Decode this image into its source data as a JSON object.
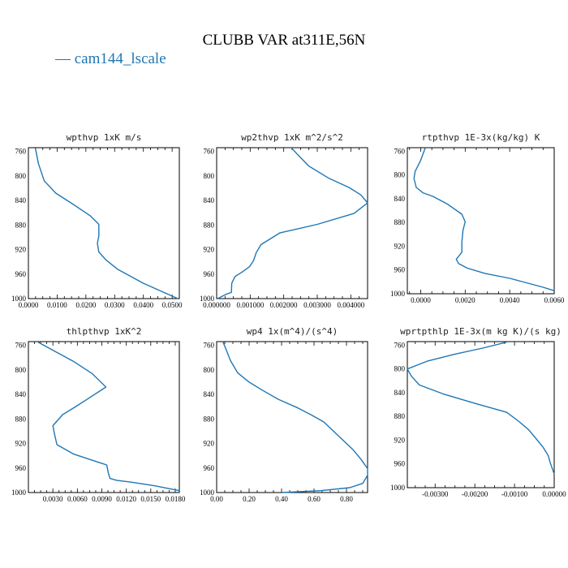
{
  "figure_title": "CLUBB VAR at311E,56N",
  "legend": {
    "label": "cam144_lscale",
    "color": "#1f77b4"
  },
  "series_color": "#1f77b4",
  "chart_data": [
    {
      "type": "line",
      "title": "wpthvp  1xK m/s",
      "xlim": [
        0.0,
        0.0525
      ],
      "ylim": [
        1000,
        754
      ],
      "yticks": [
        760,
        800,
        840,
        880,
        920,
        960,
        1000
      ],
      "xticks": [
        0.0,
        0.01,
        0.02,
        0.03,
        0.04,
        0.05
      ],
      "xtick_labels": [
        "0.0000",
        "0.0100",
        "0.0200",
        "0.0300",
        "0.0400",
        "0.0500"
      ],
      "series": [
        {
          "x": [
            0.0025,
            0.0035,
            0.0055,
            0.0095,
            0.0155,
            0.0215,
            0.0245,
            0.0245,
            0.024,
            0.0245,
            0.027,
            0.031,
            0.04,
            0.052
          ],
          "y": [
            757,
            780,
            808,
            828,
            846,
            865,
            879,
            898,
            910,
            924,
            937,
            952,
            975,
            1000
          ]
        }
      ]
    },
    {
      "type": "line",
      "title": "wp2thvp  1xK m^2/s^2",
      "xlim": [
        0.0,
        0.0045
      ],
      "ylim": [
        1000,
        754
      ],
      "yticks": [
        760,
        800,
        840,
        880,
        920,
        960,
        1000
      ],
      "xticks": [
        0.0,
        0.001,
        0.002,
        0.003,
        0.004
      ],
      "xtick_labels": [
        "0.000000",
        "0.001000",
        "0.002000",
        "0.003000",
        "0.004000"
      ],
      "series": [
        {
          "x": [
            0.00224,
            0.0025,
            0.00275,
            0.00335,
            0.00395,
            0.0043,
            0.0045,
            0.0041,
            0.003,
            0.00188,
            0.00132,
            0.00118,
            0.0011,
            0.00098,
            0.00078,
            0.00055,
            0.00045,
            0.00044,
            0.00028,
            3e-05
          ],
          "y": [
            755,
            770,
            784,
            804,
            819,
            831,
            844,
            861,
            879,
            893,
            912,
            925,
            938,
            948,
            956,
            964,
            975,
            990,
            993,
            1000
          ]
        }
      ]
    },
    {
      "type": "line",
      "title": "rtpthvp  1E-3x(kg/kg) K",
      "xlim": [
        -0.0006,
        0.006
      ],
      "ylim": [
        1000,
        754
      ],
      "yticks": [
        760,
        800,
        840,
        880,
        920,
        960,
        1000
      ],
      "xticks": [
        0.0,
        0.002,
        0.004,
        0.006
      ],
      "xtick_labels": [
        "0.0000",
        "0.0020",
        "0.0040",
        "0.0060"
      ],
      "series": [
        {
          "x": [
            0.0002,
            0.0,
            -0.00025,
            -0.0003,
            -0.0002,
            0.0001,
            0.00055,
            0.0012,
            0.00185,
            0.002,
            0.0019,
            0.00185,
            0.00185,
            0.0016,
            0.0017,
            0.0021,
            0.0029,
            0.004,
            0.0055,
            0.006
          ],
          "y": [
            755,
            775,
            794,
            806,
            821,
            830,
            836,
            849,
            866,
            879,
            893,
            913,
            930,
            942,
            949,
            957,
            966,
            974,
            989,
            995
          ]
        }
      ]
    },
    {
      "type": "line",
      "title": "thlpthvp  1xK^2",
      "xlim": [
        0.0,
        0.0185
      ],
      "ylim": [
        1000,
        754
      ],
      "yticks": [
        760,
        800,
        840,
        880,
        920,
        960,
        1000
      ],
      "xticks": [
        0.003,
        0.006,
        0.009,
        0.012,
        0.015,
        0.018
      ],
      "xtick_labels": [
        "0.0030",
        "0.0060",
        "0.0090",
        "0.0120",
        "0.0150",
        "0.0180"
      ],
      "series": [
        {
          "x": [
            0.0012,
            0.003,
            0.0055,
            0.0078,
            0.0095,
            0.0072,
            0.0058,
            0.0042,
            0.003,
            0.0032,
            0.0035,
            0.0055,
            0.0082,
            0.0096,
            0.0098,
            0.01,
            0.0108,
            0.0125,
            0.0155,
            0.0185
          ],
          "y": [
            755,
            768,
            786,
            806,
            828,
            848,
            860,
            873,
            891,
            905,
            922,
            937,
            949,
            955,
            968,
            977,
            980,
            983,
            989,
            997
          ]
        }
      ]
    },
    {
      "type": "line",
      "title": "wp4  1x(m^4)/(s^4)",
      "xlim": [
        0.0,
        0.93
      ],
      "ylim": [
        1000,
        754
      ],
      "yticks": [
        760,
        800,
        840,
        880,
        920,
        960,
        1000
      ],
      "xticks": [
        0.0,
        0.2,
        0.4,
        0.6,
        0.8
      ],
      "xtick_labels": [
        "0.00",
        "0.20",
        "0.40",
        "0.60",
        "0.80"
      ],
      "series": [
        {
          "x": [
            0.04,
            0.06,
            0.085,
            0.13,
            0.2,
            0.28,
            0.38,
            0.5,
            0.58,
            0.66,
            0.72,
            0.78,
            0.84,
            0.89,
            0.93,
            0.93,
            0.9,
            0.82,
            0.64,
            0.4
          ],
          "y": [
            755,
            768,
            785,
            805,
            820,
            833,
            848,
            862,
            873,
            885,
            900,
            915,
            930,
            946,
            961,
            972,
            985,
            992,
            997,
            1000
          ]
        }
      ]
    },
    {
      "type": "line",
      "title": "wprtpthlp  1E-3x(m kg K)/(s kg)",
      "xlim": [
        -0.0037,
        0.0
      ],
      "ylim": [
        1000,
        754
      ],
      "yticks": [
        760,
        800,
        840,
        880,
        920,
        960,
        1000
      ],
      "xticks": [
        -0.003,
        -0.002,
        -0.001,
        0.0
      ],
      "xtick_labels": [
        "-0.00300",
        "-0.00200",
        "-0.00100",
        "0.00000"
      ],
      "series": [
        {
          "x": [
            -0.0012,
            -0.0018,
            -0.0025,
            -0.0032,
            -0.0037,
            -0.0036,
            -0.0034,
            -0.0028,
            -0.002,
            -0.0012,
            -0.0009,
            -0.00065,
            -0.00045,
            -0.00028,
            -0.00015,
            -0.0001,
            0.0
          ],
          "y": [
            755,
            765,
            775,
            787,
            800,
            812,
            827,
            842,
            858,
            873,
            888,
            902,
            918,
            932,
            946,
            958,
            977
          ]
        }
      ]
    }
  ]
}
